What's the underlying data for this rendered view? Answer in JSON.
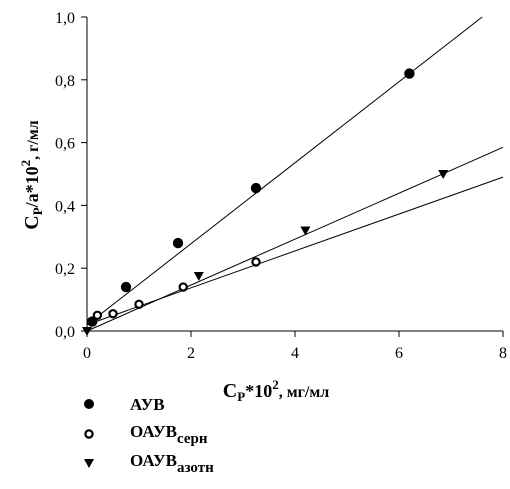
{
  "chart_data": {
    "type": "scatter",
    "xlim": [
      0,
      8
    ],
    "ylim": [
      0,
      1.0
    ],
    "x_ticks": [
      {
        "value": 0,
        "label": "0"
      },
      {
        "value": 2,
        "label": "2"
      },
      {
        "value": 4,
        "label": "4"
      },
      {
        "value": 6,
        "label": "6"
      },
      {
        "value": 8,
        "label": "8"
      }
    ],
    "y_ticks": [
      {
        "value": 0.0,
        "label": "0,0"
      },
      {
        "value": 0.2,
        "label": "0,2"
      },
      {
        "value": 0.4,
        "label": "0,4"
      },
      {
        "value": 0.6,
        "label": "0,6"
      },
      {
        "value": 0.8,
        "label": "0,8"
      },
      {
        "value": 1.0,
        "label": "1,0"
      }
    ],
    "xlabel": {
      "base": "C",
      "sub": "P",
      "mid": "*10",
      "sup": "2",
      "tail": ", мг/мл"
    },
    "ylabel": {
      "base": "C",
      "sub": "P",
      "mid": "/a*10",
      "sup": "2",
      "tail": ", г/мл"
    },
    "grid": false,
    "legend_position": "bottom-left",
    "series": [
      {
        "name": "АУВ",
        "name_sub": "",
        "marker": "filled-circle",
        "x": [
          0.1,
          0.75,
          1.75,
          3.25,
          6.2
        ],
        "y": [
          0.03,
          0.14,
          0.28,
          0.455,
          0.82
        ],
        "fit": {
          "x": [
            0,
            7.6
          ],
          "y": [
            0.02,
            1.0
          ]
        }
      },
      {
        "name": "ОАУВ",
        "name_sub": "серн",
        "marker": "open-circle",
        "x": [
          0.2,
          0.5,
          1.0,
          1.85,
          3.25
        ],
        "y": [
          0.05,
          0.055,
          0.085,
          0.14,
          0.22
        ],
        "fit": {
          "x": [
            0,
            8
          ],
          "y": [
            0.02,
            0.49
          ]
        }
      },
      {
        "name": "ОАУВ",
        "name_sub": "азотн",
        "marker": "filled-triangle-down",
        "x": [
          0,
          2.15,
          4.2,
          6.85
        ],
        "y": [
          0.0,
          0.175,
          0.32,
          0.5
        ],
        "fit": {
          "x": [
            0,
            8
          ],
          "y": [
            0.0,
            0.585
          ]
        }
      }
    ]
  }
}
